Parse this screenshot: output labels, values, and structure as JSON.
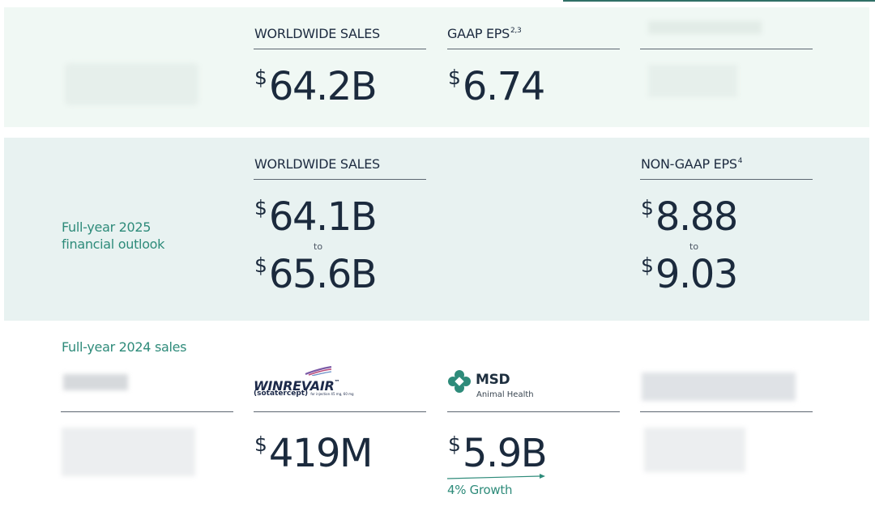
{
  "colors": {
    "accent": "#2e8b7a",
    "text": "#1b2a3d",
    "panel_light": "#f0f8f4",
    "panel_outlook": "#e8f2f1"
  },
  "results": {
    "sales_header": "WORLDWIDE SALES",
    "sales_value": "64.2B",
    "eps_header": "GAAP EPS",
    "eps_sup": "2,3",
    "eps_value": "6.74",
    "currency": "$"
  },
  "outlook": {
    "label_line1": "Full-year 2025",
    "label_line2": "financial outlook",
    "sales_header": "WORLDWIDE SALES",
    "sales_low": "64.1B",
    "sales_high": "65.6B",
    "eps_header": "NON-GAAP EPS",
    "eps_sup": "4",
    "eps_low": "8.88",
    "eps_high": "9.03",
    "to_word": "to",
    "currency": "$"
  },
  "sales_2024": {
    "section_label": "Full-year 2024 sales",
    "currency": "$",
    "winrevair": {
      "brand": "WINREVAIR",
      "trademark": "™",
      "generic": "(sotatercept)",
      "dosage_text": "for injection 45 mg, 60 mg",
      "value": "419M"
    },
    "animal_health": {
      "brand": "MSD",
      "subtitle": "Animal Health",
      "value": "5.9B",
      "growth": "4% Growth"
    }
  }
}
